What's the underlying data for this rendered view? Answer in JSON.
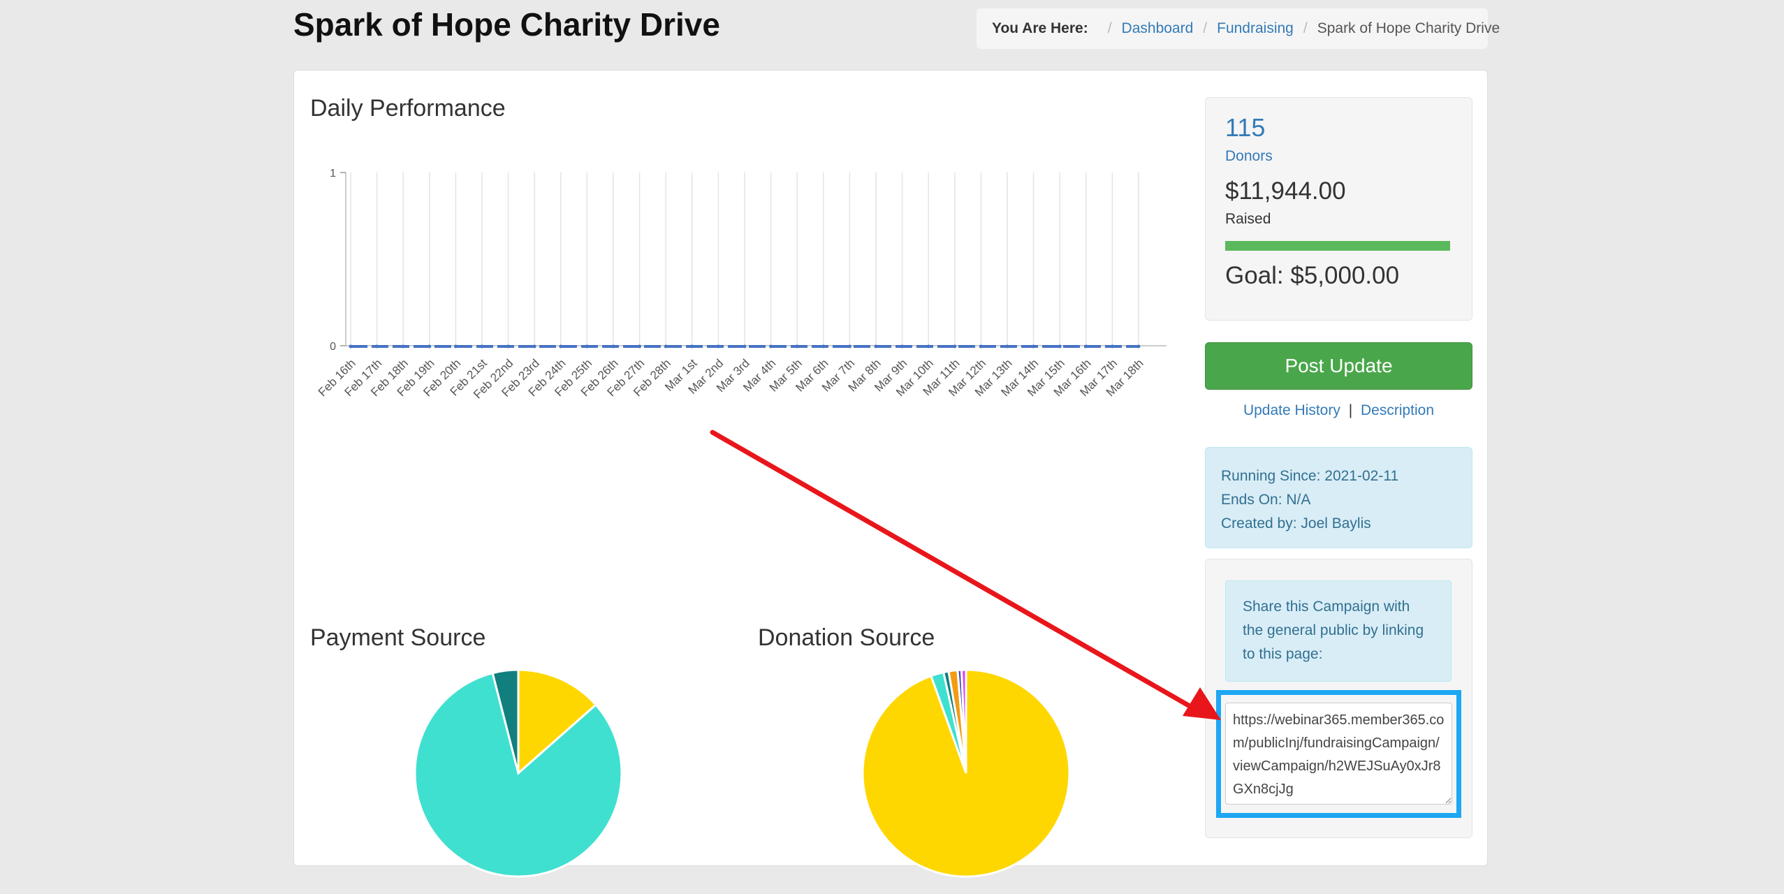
{
  "page": {
    "title": "Spark of Hope Charity Drive"
  },
  "breadcrumb": {
    "label": "You Are Here:",
    "items": [
      "Dashboard",
      "Fundraising"
    ],
    "current": "Spark of Hope Charity Drive"
  },
  "daily_performance": {
    "title": "Daily Performance"
  },
  "payment_source": {
    "title": "Payment Source"
  },
  "donation_source": {
    "title": "Donation Source"
  },
  "stats": {
    "donors_count": "115",
    "donors_label": "Donors",
    "raised_amount": "$11,944.00",
    "raised_label": "Raised",
    "goal": "Goal: $5,000.00",
    "progress_fraction": 1.0,
    "progress_color": "#5cb85c"
  },
  "actions": {
    "post_update": "Post Update",
    "update_history": "Update History",
    "separator": "|",
    "description": "Description"
  },
  "info": {
    "running_since": "Running Since: 2021-02-11",
    "ends_on": "Ends On: N/A",
    "created_by": "Created by: Joel Baylis"
  },
  "share": {
    "message": "Share this Campaign with the general public by linking to this page:",
    "url": "https://webinar365.member365.com/publicInj/fundraisingCampaign/viewCampaign/h2WEJSuAy0xJr8GXn8cjJg"
  },
  "annotation": {
    "arrow_color": "#e8161b",
    "highlight_color": "#1ea7f3"
  },
  "chart_data": [
    {
      "type": "line",
      "title": "Daily Performance",
      "xlabel": "",
      "ylabel": "",
      "ylim": [
        0,
        1
      ],
      "yticks": [
        0,
        1
      ],
      "grid": true,
      "x": [
        "Feb 16th",
        "Feb 17th",
        "Feb 18th",
        "Feb 19th",
        "Feb 20th",
        "Feb 21st",
        "Feb 22nd",
        "Feb 23rd",
        "Feb 24th",
        "Feb 25th",
        "Feb 26th",
        "Feb 27th",
        "Feb 28th",
        "Mar 1st",
        "Mar 2nd",
        "Mar 3rd",
        "Mar 4th",
        "Mar 5th",
        "Mar 6th",
        "Mar 7th",
        "Mar 8th",
        "Mar 9th",
        "Mar 10th",
        "Mar 11th",
        "Mar 12th",
        "Mar 13th",
        "Mar 14th",
        "Mar 15th",
        "Mar 16th",
        "Mar 17th",
        "Mar 18th"
      ],
      "series": [
        {
          "values": [
            0,
            0,
            0,
            0,
            0,
            0,
            0,
            0,
            0,
            0,
            0,
            0,
            0,
            0,
            0,
            0,
            0,
            0,
            0,
            0,
            0,
            0,
            0,
            0,
            0,
            0,
            0,
            0,
            0,
            0,
            0
          ],
          "color": "#4572c4"
        }
      ]
    },
    {
      "type": "pie",
      "title": "Payment Source",
      "slices": [
        {
          "value": 13.5,
          "color": "#ffd700"
        },
        {
          "value": 82.5,
          "color": "#40e0d0"
        },
        {
          "value": 4.0,
          "color": "#127f7f"
        }
      ]
    },
    {
      "type": "pie",
      "title": "Donation Source",
      "slices": [
        {
          "value": 94.5,
          "color": "#ffd700"
        },
        {
          "value": 2.0,
          "color": "#40e0d0"
        },
        {
          "value": 0.8,
          "color": "#127f7f"
        },
        {
          "value": 1.4,
          "color": "#f39c12"
        },
        {
          "value": 0.6,
          "color": "#3f51b5"
        },
        {
          "value": 0.7,
          "color": "#e040fb"
        }
      ]
    }
  ]
}
